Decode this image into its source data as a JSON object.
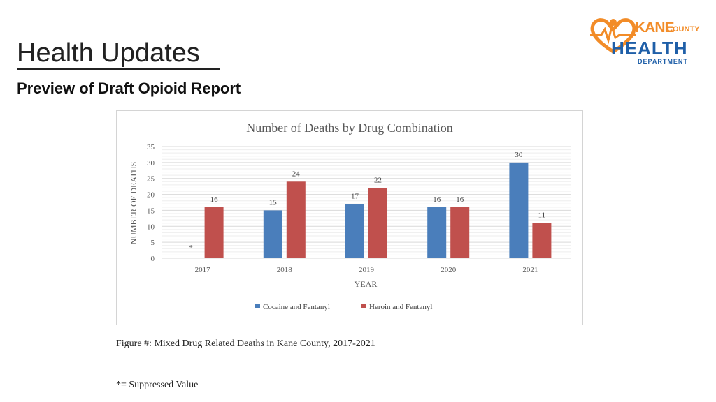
{
  "slide": {
    "title": "Health Updates",
    "subtitle": "Preview of Draft Opioid Report",
    "caption": "Figure #: Mixed Drug Related Deaths in Kane County, 2017-2021",
    "footnote": "*= Suppressed Value"
  },
  "logo": {
    "kane": "KANE",
    "county": "COUNTY",
    "health": "HEALTH",
    "department": "DEPARTMENT",
    "orange": "#f28c28",
    "blue": "#1f5fa8"
  },
  "chart_data": {
    "type": "bar",
    "title": "Number of Deaths by Drug Combination",
    "xlabel": "YEAR",
    "ylabel": "NUMBER OF DEATHS",
    "categories": [
      "2017",
      "2018",
      "2019",
      "2020",
      "2021"
    ],
    "ylim": [
      0,
      35
    ],
    "yticks": [
      0,
      5,
      10,
      15,
      20,
      25,
      30,
      35
    ],
    "grid": true,
    "legend": "bottom",
    "series": [
      {
        "name": "Cocaine and Fentanyl",
        "color": "#4a7ebb",
        "values": [
          null,
          15,
          17,
          16,
          30
        ],
        "labels": [
          "*",
          "15",
          "17",
          "16",
          "30"
        ]
      },
      {
        "name": "Heroin and Fentanyl",
        "color": "#c0504d",
        "values": [
          16,
          24,
          22,
          16,
          11
        ],
        "labels": [
          "16",
          "24",
          "22",
          "16",
          "11"
        ]
      }
    ]
  }
}
